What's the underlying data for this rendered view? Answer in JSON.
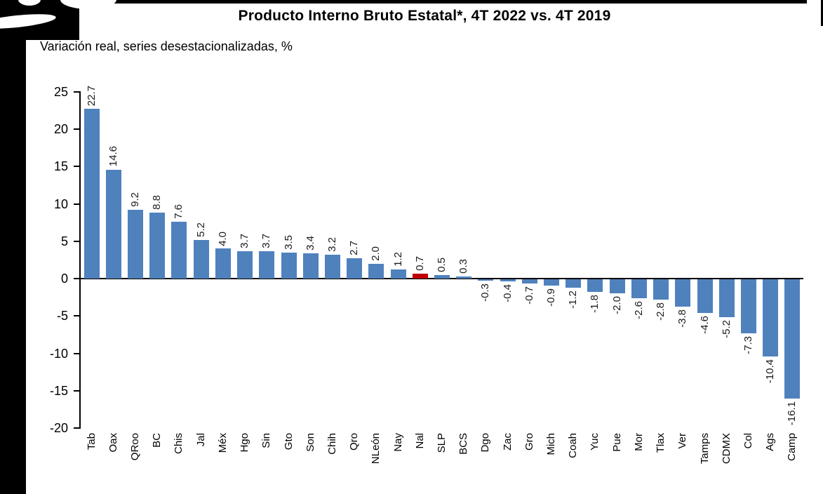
{
  "header": {
    "title": "Producto Interno Bruto Estatal*, 4T 2022 vs. 4T 2019",
    "subtitle": "Variación real, series desestacionalizadas, %"
  },
  "chart_data": {
    "type": "bar",
    "title": "Producto Interno Bruto Estatal*, 4T 2022 vs. 4T 2019",
    "subtitle": "Variación real, series desestacionalizadas, %",
    "categories": [
      "Tab",
      "Oax",
      "QRoo",
      "BC",
      "Chis",
      "Jal",
      "Méx",
      "Hgo",
      "Sin",
      "Gto",
      "Son",
      "Chih",
      "Qro",
      "NLeón",
      "Nay",
      "Nal",
      "SLP",
      "BCS",
      "Dgo",
      "Zac",
      "Gro",
      "Mich",
      "Coah",
      "Yuc",
      "Pue",
      "Mor",
      "Tlax",
      "Ver",
      "Tamps",
      "CDMX",
      "Col",
      "Ags",
      "Camp"
    ],
    "values": [
      22.7,
      14.6,
      9.2,
      8.8,
      7.6,
      5.2,
      4.0,
      3.7,
      3.7,
      3.5,
      3.4,
      3.2,
      2.7,
      2.0,
      1.2,
      0.7,
      0.5,
      0.3,
      -0.3,
      -0.4,
      -0.7,
      -0.9,
      -1.2,
      -1.8,
      -2.0,
      -2.6,
      -2.8,
      -3.8,
      -4.6,
      -5.2,
      -7.3,
      -10.4,
      -16.1
    ],
    "highlight_category": "Nal",
    "highlight_index": 15,
    "bar_color": "#4f81bd",
    "highlight_color": "#c00000",
    "label_color": "#1a1a1a",
    "axis_color": "#000000",
    "ylim": [
      -20,
      25
    ],
    "yticks": [
      25,
      20,
      15,
      10,
      5,
      0,
      -5,
      -10,
      -15,
      -20
    ],
    "grid": false,
    "legend": "none",
    "value_label_format": "0.0",
    "value_label_rotation": 90,
    "category_label_rotation": 90,
    "xlabel": "",
    "ylabel": ""
  }
}
